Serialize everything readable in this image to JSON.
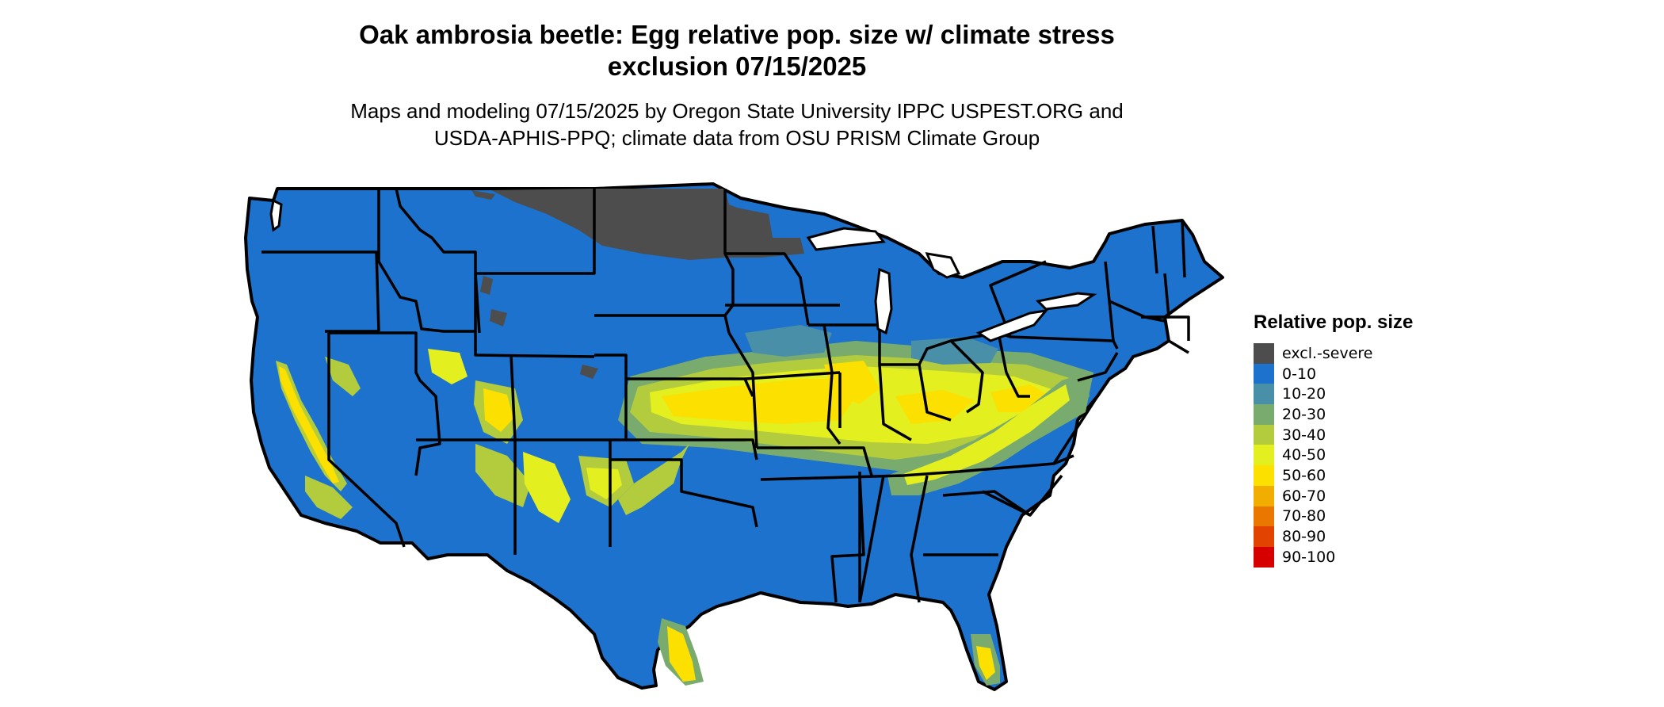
{
  "title_line1": "Oak ambrosia beetle: Egg relative pop. size w/ climate stress",
  "title_line2": "exclusion 07/15/2025",
  "subtitle_line1": "Maps and modeling 07/15/2025 by Oregon State University IPPC USPEST.ORG and",
  "subtitle_line2": "USDA-APHIS-PPQ; climate data from OSU PRISM Climate Group",
  "legend": {
    "title": "Relative pop. size",
    "items": [
      {
        "label": "excl.-severe",
        "color": "#4d4d4d"
      },
      {
        "label": "0-10",
        "color": "#1c72cc"
      },
      {
        "label": "10-20",
        "color": "#4a8fa8"
      },
      {
        "label": "20-30",
        "color": "#7aab6e"
      },
      {
        "label": "30-40",
        "color": "#b2cc3e"
      },
      {
        "label": "40-50",
        "color": "#e4ef1f"
      },
      {
        "label": "50-60",
        "color": "#fbe000"
      },
      {
        "label": "60-70",
        "color": "#f2ae00"
      },
      {
        "label": "70-80",
        "color": "#ea7800"
      },
      {
        "label": "80-90",
        "color": "#e24400"
      },
      {
        "label": "90-100",
        "color": "#d60000"
      }
    ]
  }
}
